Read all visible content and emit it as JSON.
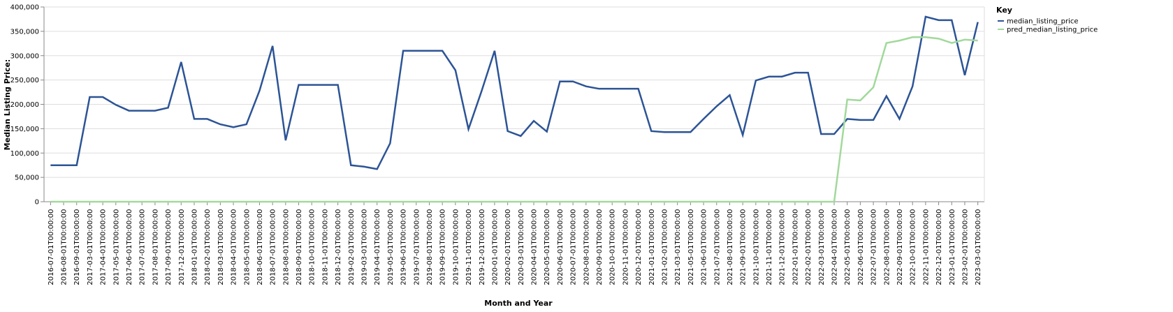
{
  "chart_data": {
    "type": "line",
    "xlabel": "Month and Year",
    "ylabel": "Median Listing Price:",
    "legend_title": "Key",
    "legend_position": "right",
    "grid": true,
    "categories": [
      "2016-07-01T00:00:00",
      "2016-08-01T00:00:00",
      "2016-09-01T00:00:00",
      "2017-03-01T00:00:00",
      "2017-04-01T00:00:00",
      "2017-05-01T00:00:00",
      "2017-06-01T00:00:00",
      "2017-07-01T00:00:00",
      "2017-08-01T00:00:00",
      "2017-09-01T00:00:00",
      "2017-12-01T00:00:00",
      "2018-01-01T00:00:00",
      "2018-02-01T00:00:00",
      "2018-03-01T00:00:00",
      "2018-04-01T00:00:00",
      "2018-05-01T00:00:00",
      "2018-06-01T00:00:00",
      "2018-07-01T00:00:00",
      "2018-08-01T00:00:00",
      "2018-09-01T00:00:00",
      "2018-10-01T00:00:00",
      "2018-11-01T00:00:00",
      "2018-12-01T00:00:00",
      "2019-02-01T00:00:00",
      "2019-03-01T00:00:00",
      "2019-04-01T00:00:00",
      "2019-05-01T00:00:00",
      "2019-06-01T00:00:00",
      "2019-07-01T00:00:00",
      "2019-08-01T00:00:00",
      "2019-09-01T00:00:00",
      "2019-10-01T00:00:00",
      "2019-11-01T00:00:00",
      "2019-12-01T00:00:00",
      "2020-01-01T00:00:00",
      "2020-02-01T00:00:00",
      "2020-03-01T00:00:00",
      "2020-04-01T00:00:00",
      "2020-05-01T00:00:00",
      "2020-06-01T00:00:00",
      "2020-07-01T00:00:00",
      "2020-08-01T00:00:00",
      "2020-09-01T00:00:00",
      "2020-10-01T00:00:00",
      "2020-11-01T00:00:00",
      "2020-12-01T00:00:00",
      "2021-01-01T00:00:00",
      "2021-02-01T00:00:00",
      "2021-03-01T00:00:00",
      "2021-05-01T00:00:00",
      "2021-06-01T00:00:00",
      "2021-07-01T00:00:00",
      "2021-08-01T00:00:00",
      "2021-09-01T00:00:00",
      "2021-10-01T00:00:00",
      "2021-11-01T00:00:00",
      "2021-12-01T00:00:00",
      "2022-01-01T00:00:00",
      "2022-02-01T00:00:00",
      "2022-03-01T00:00:00",
      "2022-04-01T00:00:00",
      "2022-05-01T00:00:00",
      "2022-06-01T00:00:00",
      "2022-07-01T00:00:00",
      "2022-08-01T00:00:00",
      "2022-09-01T00:00:00",
      "2022-10-01T00:00:00",
      "2022-11-01T00:00:00",
      "2022-12-01T00:00:00",
      "2023-01-01T00:00:00",
      "2023-02-01T00:00:00",
      "2023-03-01T00:00:00"
    ],
    "series": [
      {
        "name": "median_listing_price",
        "color": "#2c5496",
        "values": [
          75000,
          75000,
          75000,
          215000,
          215000,
          199000,
          187000,
          187000,
          187000,
          193000,
          287000,
          170000,
          170000,
          159000,
          153000,
          159000,
          228000,
          320000,
          126000,
          240000,
          240000,
          240000,
          240000,
          75000,
          72000,
          67000,
          120000,
          310000,
          310000,
          310000,
          310000,
          270000,
          149000,
          227000,
          310000,
          145000,
          135000,
          166000,
          144000,
          247000,
          247000,
          237000,
          232000,
          232000,
          232000,
          232000,
          145000,
          143000,
          143000,
          143000,
          170000,
          196000,
          219000,
          137000,
          249000,
          257000,
          257000,
          265000,
          265000,
          139000,
          139000,
          170000,
          168000,
          168000,
          217000,
          170000,
          237000,
          380000,
          373000,
          373000,
          260000,
          369000
        ]
      },
      {
        "name": "pred_median_listing_price",
        "color": "#a1d99b",
        "values": [
          0,
          0,
          0,
          0,
          0,
          0,
          0,
          0,
          0,
          0,
          0,
          0,
          0,
          0,
          0,
          0,
          0,
          0,
          0,
          0,
          0,
          0,
          0,
          0,
          0,
          0,
          0,
          0,
          0,
          0,
          0,
          0,
          0,
          0,
          0,
          0,
          0,
          0,
          0,
          0,
          0,
          0,
          0,
          0,
          0,
          0,
          0,
          0,
          0,
          0,
          0,
          0,
          0,
          0,
          0,
          0,
          0,
          0,
          0,
          0,
          0,
          210000,
          208000,
          235000,
          326000,
          331000,
          338000,
          338000,
          335000,
          326000,
          333000,
          331000
        ]
      }
    ],
    "ylim": [
      0,
      400000
    ],
    "yticks": [
      0,
      {
        "value": 50000,
        "label": "50,000"
      },
      {
        "value": 100000,
        "label": "100,000"
      },
      {
        "value": 150000,
        "label": "150,000"
      },
      {
        "value": 200000,
        "label": "200,000"
      },
      {
        "value": 250000,
        "label": "250,000"
      },
      {
        "value": 300000,
        "label": "300,000"
      },
      {
        "value": 350000,
        "label": "350,000"
      },
      {
        "value": 400000,
        "label": "400,000"
      }
    ]
  }
}
